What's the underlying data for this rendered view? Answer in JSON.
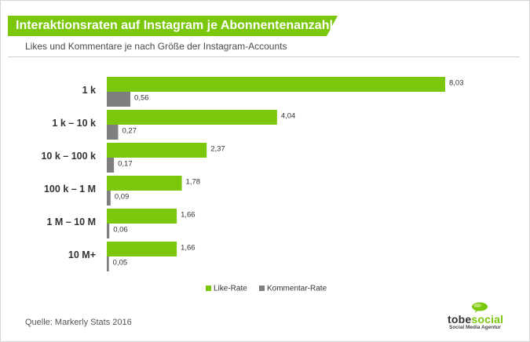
{
  "header": {
    "title": "Interaktionsraten auf Instagram je Abonnentenanzahl",
    "subtitle": "Likes und Kommentare je nach Größe der Instagram-Accounts"
  },
  "footer": {
    "source": "Quelle: Markerly Stats 2016",
    "logo_part1": "tobe",
    "logo_part2": "social",
    "logo_tagline": "Social Media Agentur"
  },
  "colors": {
    "like": "#7ac70c",
    "comment": "#7f7f7f",
    "banner": "#7ac70c"
  },
  "chart_data": {
    "type": "bar",
    "orientation": "horizontal",
    "categories": [
      "1 k",
      "1 k – 10 k",
      "10 k – 100 k",
      "100 k – 1 M",
      "1 M – 10 M",
      "10 M+"
    ],
    "series": [
      {
        "name": "Like-Rate",
        "values": [
          8.03,
          4.04,
          2.37,
          1.78,
          1.66,
          1.66
        ],
        "labels": [
          "8,03",
          "4,04",
          "2,37",
          "1,78",
          "1,66",
          "1,66"
        ]
      },
      {
        "name": "Kommentar-Rate",
        "values": [
          0.56,
          0.27,
          0.17,
          0.09,
          0.06,
          0.05
        ],
        "labels": [
          "0,56",
          "0,27",
          "0,17",
          "0,09",
          "0,06",
          "0,05"
        ]
      }
    ],
    "xlim": [
      0,
      8.03
    ],
    "legend_position": "bottom",
    "grid": false
  }
}
